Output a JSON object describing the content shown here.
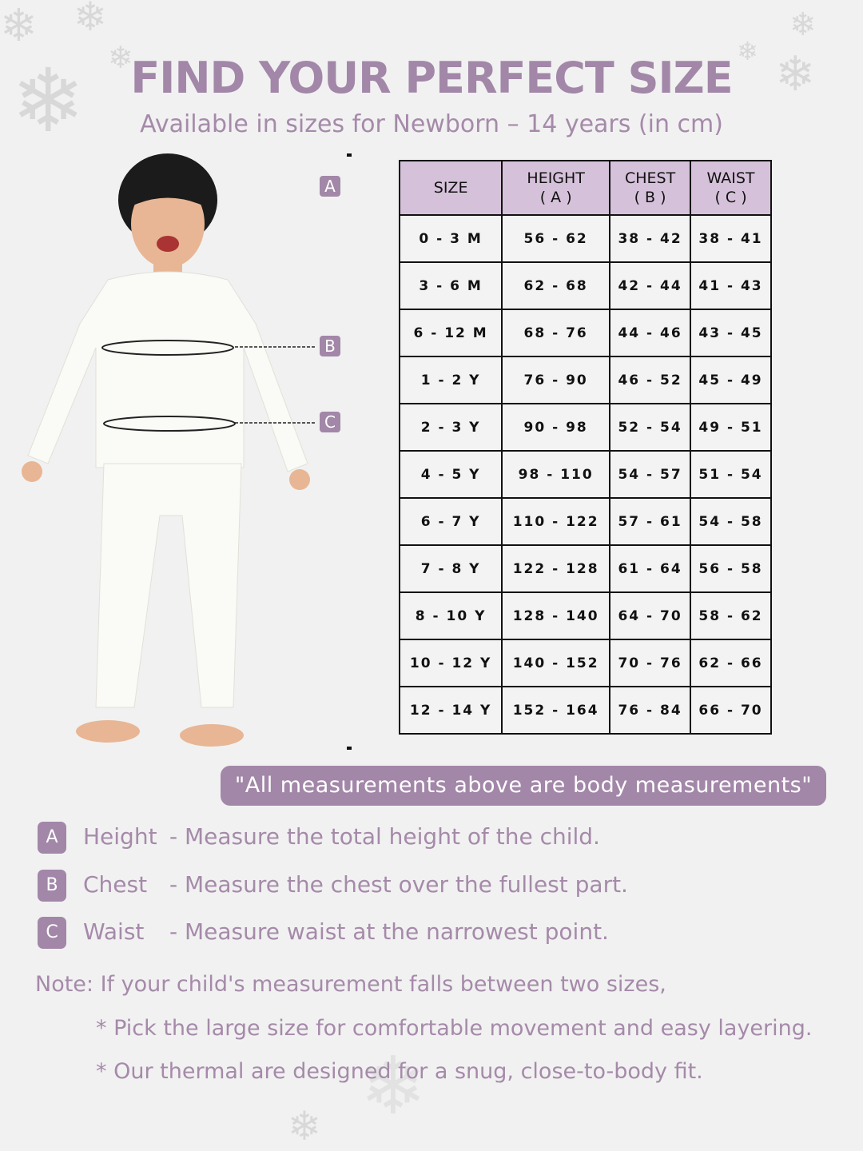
{
  "title": "FIND YOUR PERFECT SIZE",
  "subtitle": "Available in sizes for Newborn – 14 years (in cm)",
  "markers": {
    "a": "A",
    "b": "B",
    "c": "C"
  },
  "table": {
    "headers": [
      {
        "line1": "SIZE",
        "line2": ""
      },
      {
        "line1": "HEIGHT",
        "line2": "( A )"
      },
      {
        "line1": "CHEST",
        "line2": "( B )"
      },
      {
        "line1": "WAIST",
        "line2": "( C )"
      }
    ],
    "rows": [
      [
        "0 - 3 M",
        "56 - 62",
        "38 - 42",
        "38 - 41"
      ],
      [
        "3 - 6 M",
        "62 - 68",
        "42 - 44",
        "41 - 43"
      ],
      [
        "6 - 12 M",
        "68 - 76",
        "44 - 46",
        "43 - 45"
      ],
      [
        "1 - 2 Y",
        "76 - 90",
        "46 - 52",
        "45 - 49"
      ],
      [
        "2 - 3 Y",
        "90 - 98",
        "52 - 54",
        "49 - 51"
      ],
      [
        "4 - 5 Y",
        "98 - 110",
        "54 - 57",
        "51 - 54"
      ],
      [
        "6 - 7 Y",
        "110 - 122",
        "57 - 61",
        "54 - 58"
      ],
      [
        "7 - 8 Y",
        "122 - 128",
        "61 - 64",
        "56 - 58"
      ],
      [
        "8 - 10 Y",
        "128 - 140",
        "64 - 70",
        "58 - 62"
      ],
      [
        "10 - 12 Y",
        "140 - 152",
        "70 - 76",
        "62 - 66"
      ],
      [
        "12 - 14 Y",
        "152 - 164",
        "76 - 84",
        "66 - 70"
      ]
    ]
  },
  "body_note": "\"All measurements above are body measurements\"",
  "definitions": [
    {
      "badge": "A",
      "label": "Height",
      "text": "- Measure the total height of the child."
    },
    {
      "badge": "B",
      "label": "Chest",
      "text": "- Measure the chest over the fullest part."
    },
    {
      "badge": "C",
      "label": "Waist",
      "text": "- Measure waist at the narrowest point."
    }
  ],
  "note": {
    "intro": "Note: If your child's measurement falls between two sizes,",
    "tips": [
      "* Pick the large size for comfortable movement and easy layering.",
      "* Our thermal are designed for a snug, close-to-body fit."
    ]
  },
  "colors": {
    "accent": "#a287a8",
    "header_fill": "#d6c1da",
    "background": "#f1f1f1"
  }
}
